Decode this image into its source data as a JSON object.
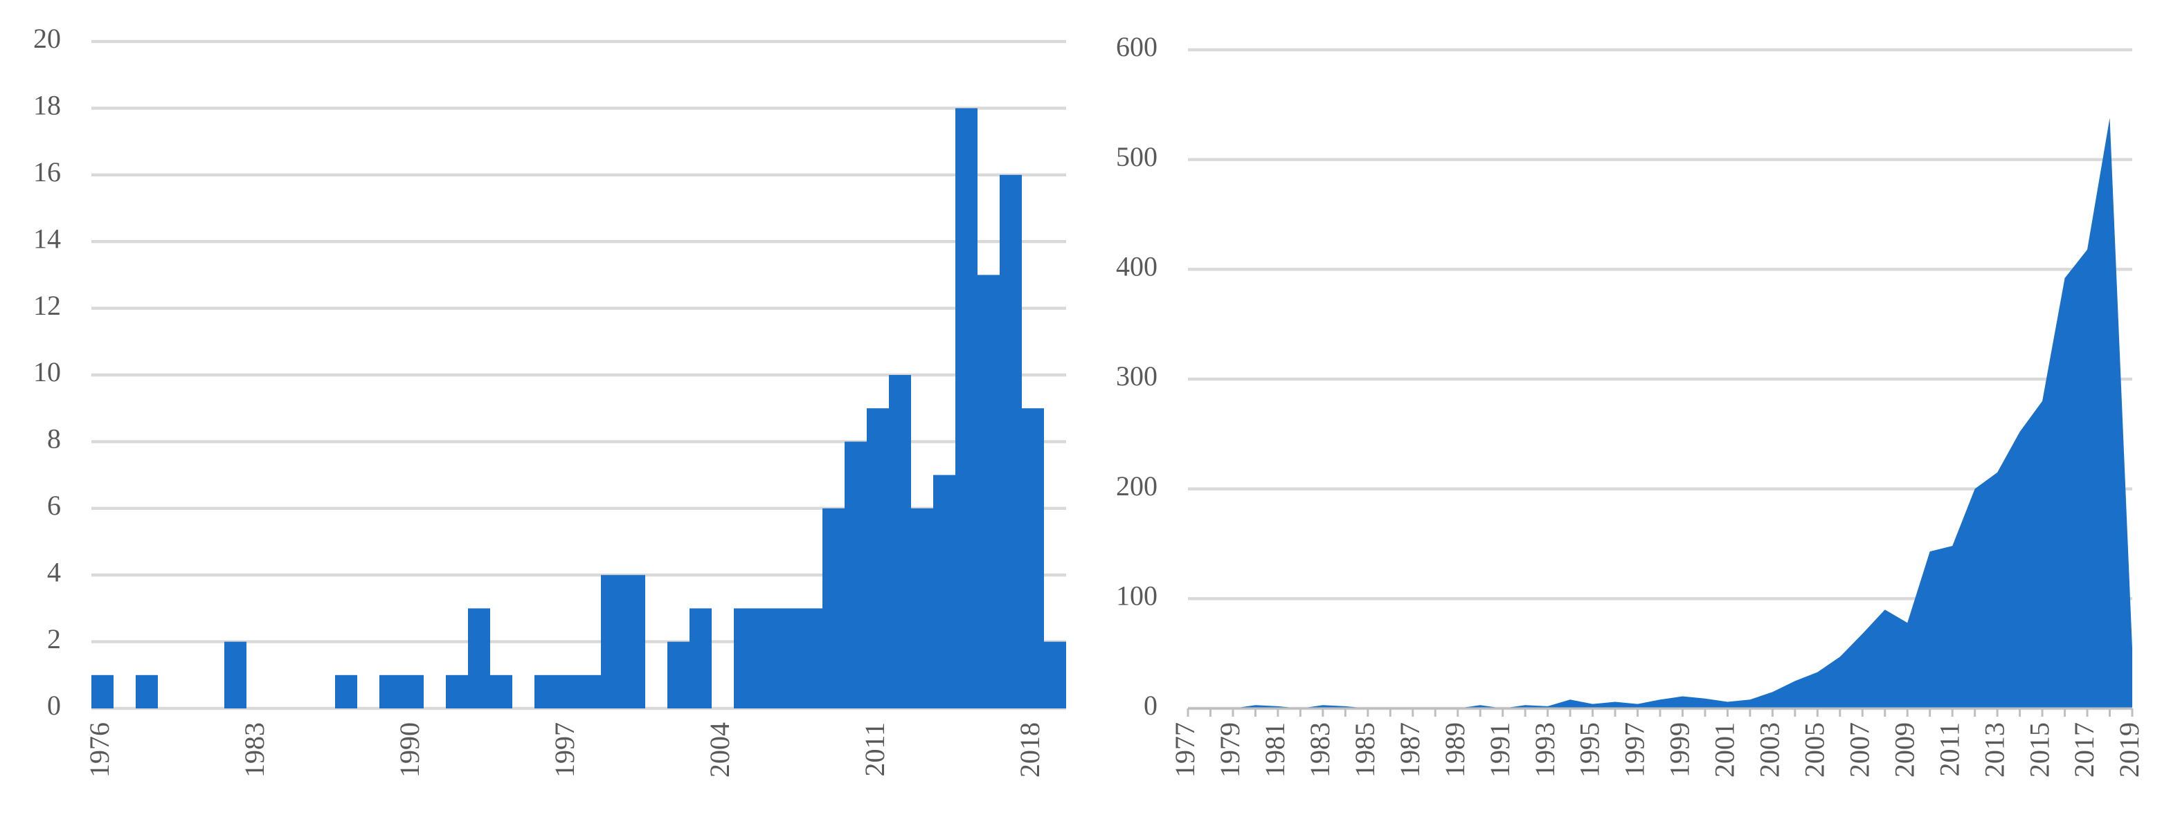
{
  "chart_data": [
    {
      "type": "bar",
      "color": "#1a70c8",
      "grid": true,
      "categories": [
        "1976",
        null,
        null,
        null,
        null,
        null,
        null,
        "1983",
        null,
        null,
        null,
        null,
        null,
        null,
        "1990",
        null,
        null,
        null,
        null,
        null,
        null,
        "1997",
        null,
        null,
        null,
        null,
        null,
        null,
        "2004",
        null,
        null,
        null,
        null,
        null,
        null,
        "2011",
        null,
        null,
        null,
        null,
        null,
        null,
        "2018",
        null
      ],
      "values": [
        1,
        0,
        1,
        0,
        0,
        0,
        2,
        0,
        0,
        0,
        0,
        1,
        0,
        1,
        1,
        0,
        1,
        3,
        1,
        0,
        1,
        1,
        1,
        4,
        4,
        0,
        2,
        3,
        0,
        3,
        3,
        3,
        3,
        6,
        8,
        9,
        10,
        6,
        7,
        18,
        13,
        16,
        9,
        2
      ],
      "ylim": [
        0,
        20
      ],
      "yticks": [
        0,
        2,
        4,
        6,
        8,
        10,
        12,
        14,
        16,
        18,
        20
      ]
    },
    {
      "type": "area",
      "color": "#1a70c8",
      "grid": true,
      "categories": [
        "1977",
        null,
        "1979",
        null,
        "1981",
        null,
        "1983",
        null,
        "1985",
        null,
        "1987",
        null,
        "1989",
        null,
        "1991",
        null,
        "1993",
        null,
        "1995",
        null,
        "1997",
        null,
        "1999",
        null,
        "2001",
        null,
        "2003",
        null,
        "2005",
        null,
        "2007",
        null,
        "2009",
        null,
        "2011",
        null,
        "2013",
        null,
        "2015",
        null,
        "2017",
        null,
        "2019"
      ],
      "values": [
        0,
        0,
        0,
        3,
        2,
        0,
        3,
        2,
        0,
        0,
        0,
        0,
        0,
        3,
        0,
        3,
        2,
        8,
        4,
        6,
        4,
        8,
        11,
        9,
        6,
        8,
        15,
        25,
        33,
        47,
        68,
        90,
        78,
        143,
        148,
        200,
        215,
        252,
        280,
        392,
        418,
        538,
        55
      ],
      "ylim": [
        0,
        600
      ],
      "yticks": [
        0,
        100,
        200,
        300,
        400,
        500,
        600
      ]
    }
  ]
}
